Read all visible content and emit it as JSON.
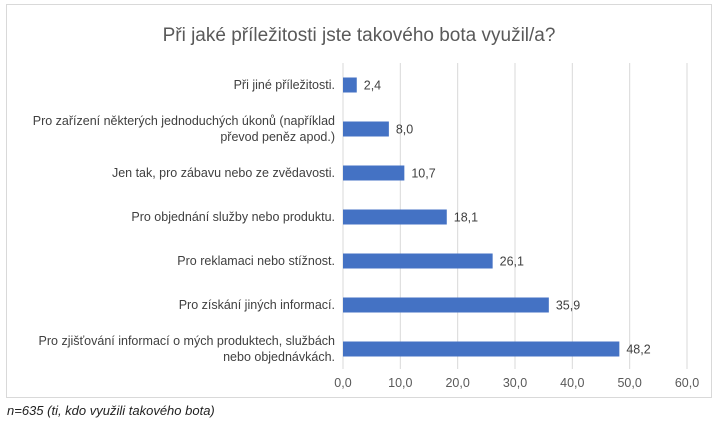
{
  "chart_data": {
    "type": "bar",
    "orientation": "horizontal",
    "title": "Při jaké příležitosti jste takového bota využil/a?",
    "categories": [
      [
        "Při jiné příležitosti."
      ],
      [
        "Pro zařízení některých jednoduchých úkonů (například",
        "převod peněz apod.)"
      ],
      [
        "Jen tak, pro zábavu nebo ze zvědavosti."
      ],
      [
        "Pro objednání služby nebo produktu."
      ],
      [
        "Pro reklamaci nebo stížnost."
      ],
      [
        "Pro získání jiných informací."
      ],
      [
        "Pro zjišťování informací o mých produktech, službách",
        "nebo objednávkách."
      ]
    ],
    "values": [
      2.4,
      8.0,
      10.7,
      18.1,
      26.1,
      35.9,
      48.2
    ],
    "value_labels": [
      "2,4",
      "8,0",
      "10,7",
      "18,1",
      "26,1",
      "35,9",
      "48,2"
    ],
    "xlim": [
      0,
      60
    ],
    "x_ticks": [
      "0,0",
      "10,0",
      "20,0",
      "30,0",
      "40,0",
      "50,0",
      "60,0"
    ],
    "grid": true,
    "bar_color": "#4472c4",
    "grid_color": "#d9d9d9"
  },
  "footnote": "n=635 (ti, kdo využili takového bota)"
}
